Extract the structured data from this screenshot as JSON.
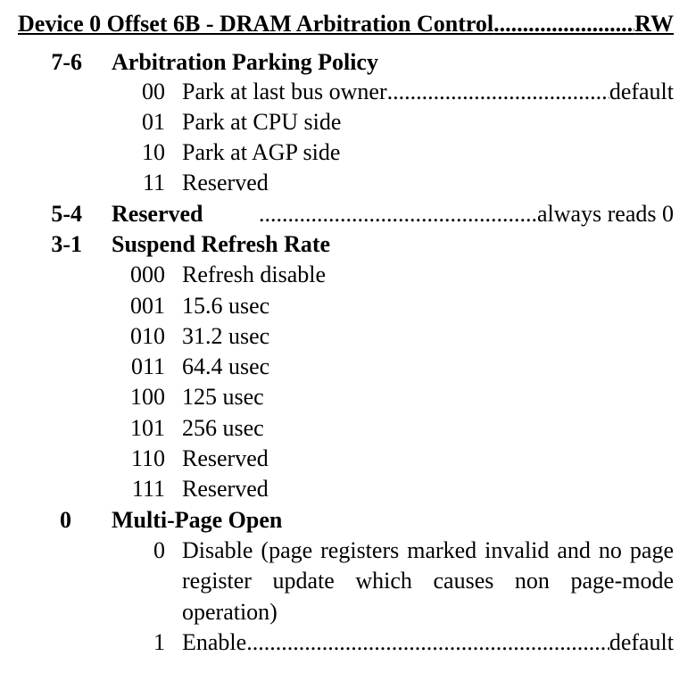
{
  "title": {
    "text": "Device 0 Offset 6B - DRAM Arbitration Control",
    "access": "RW"
  },
  "fields": [
    {
      "bits": "7-6",
      "name": "Arbitration Parking Policy",
      "values": [
        {
          "code": "00",
          "desc": "Park at last bus owner",
          "note": "default"
        },
        {
          "code": "01",
          "desc": "Park at CPU side"
        },
        {
          "code": "10",
          "desc": "Park at AGP side"
        },
        {
          "code": "11",
          "desc": "Reserved"
        }
      ]
    },
    {
      "bits": "5-4",
      "name": "Reserved",
      "note": "always reads 0"
    },
    {
      "bits": "3-1",
      "name": "Suspend Refresh Rate",
      "values": [
        {
          "code": "000",
          "desc": "Refresh disable"
        },
        {
          "code": "001",
          "desc": "15.6 usec"
        },
        {
          "code": "010",
          "desc": "31.2 usec"
        },
        {
          "code": "011",
          "desc": "64.4 usec"
        },
        {
          "code": "100",
          "desc": "125 usec"
        },
        {
          "code": "101",
          "desc": "256 usec"
        },
        {
          "code": "110",
          "desc": "Reserved"
        },
        {
          "code": "111",
          "desc": "Reserved"
        }
      ]
    },
    {
      "bits": "0",
      "name": "Multi-Page Open",
      "values": [
        {
          "code": "0",
          "desc": "Disable (page registers marked invalid and no page register update which causes non page-mode operation)"
        },
        {
          "code": "1",
          "desc": "Enable",
          "note": "default"
        }
      ]
    }
  ]
}
